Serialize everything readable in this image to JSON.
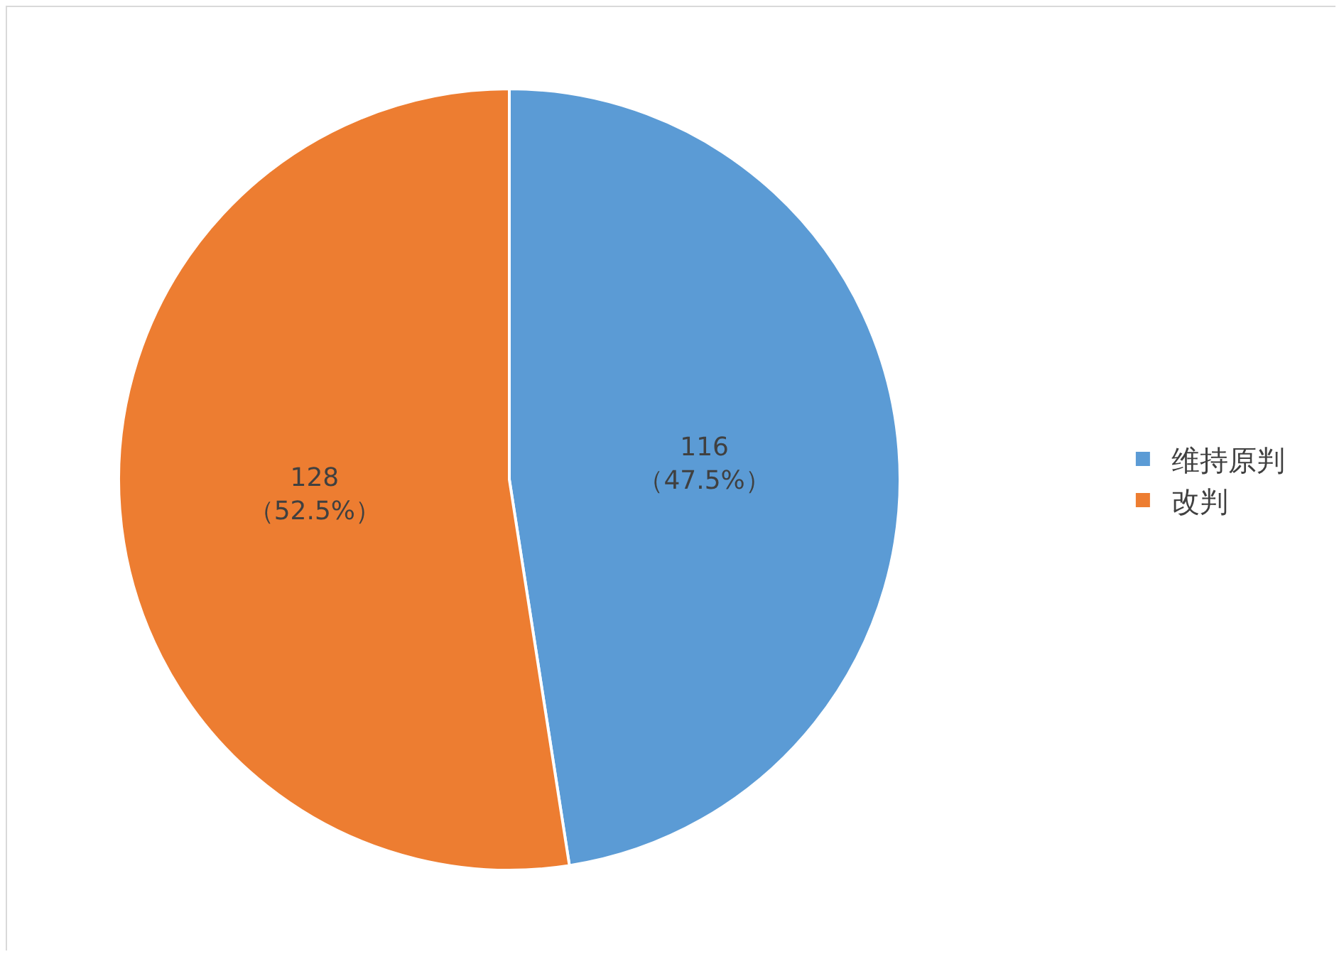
{
  "chart_data": {
    "type": "pie",
    "categories": [
      "维持原判",
      "改判"
    ],
    "values": [
      116,
      128
    ],
    "colors": [
      "#5b9bd5",
      "#ed7d31"
    ],
    "value_labels": [
      "116\n（47.5%）",
      "128\n（52.5%）"
    ],
    "legend": "right"
  }
}
